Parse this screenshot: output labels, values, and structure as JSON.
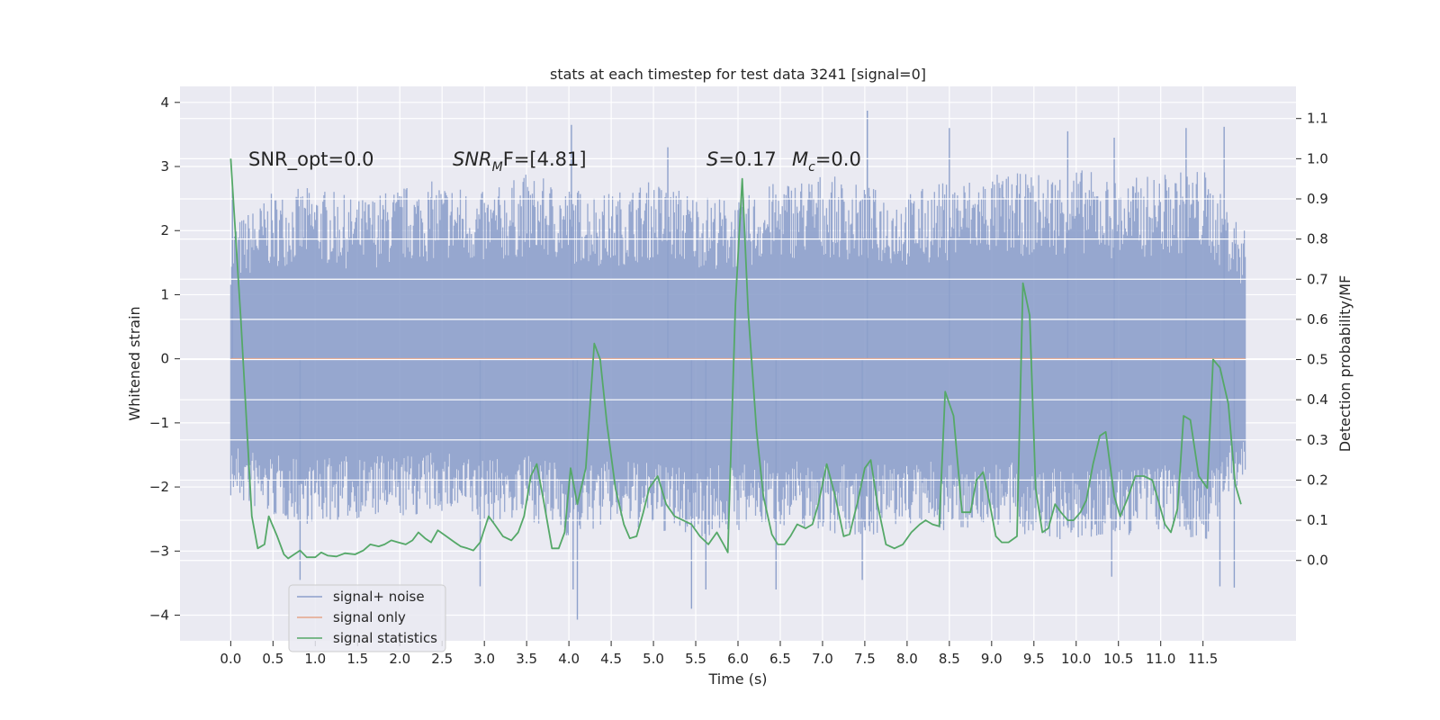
{
  "chart_data": {
    "type": "line",
    "title": "stats at each timestep for test data 3241 [signal=0]",
    "xlabel": "Time (s)",
    "ylabel": "Whitened strain",
    "ylabel_right": "Detection probability/MF",
    "xlim": [
      -0.6,
      12.6
    ],
    "ylim": [
      -4.4,
      4.25
    ],
    "ylim_right": [
      -0.2,
      1.18
    ],
    "x_ticks": [
      "0.0",
      "0.5",
      "1.0",
      "1.5",
      "2.0",
      "2.5",
      "3.0",
      "3.5",
      "4.0",
      "4.5",
      "5.0",
      "5.5",
      "6.0",
      "6.5",
      "7.0",
      "7.5",
      "8.0",
      "8.5",
      "9.0",
      "9.5",
      "10.0",
      "10.5",
      "11.0",
      "11.5"
    ],
    "y_ticks": [
      "−4",
      "−3",
      "−2",
      "−1",
      "0",
      "1",
      "2",
      "3",
      "4"
    ],
    "y_ticks_right": [
      "0.0",
      "0.1",
      "0.2",
      "0.3",
      "0.4",
      "0.5",
      "0.6",
      "0.7",
      "0.8",
      "0.9",
      "1.0",
      "1.1"
    ],
    "grid": true,
    "legend_placement": "lower-left",
    "annotations": {
      "snr_opt": "SNR_opt=0.0",
      "snr_mf_main": "SNR",
      "snr_mf_sub": "M",
      "snr_mf_rest": "F=[4.81]",
      "s_italic": "S",
      "s_value": "=0.17",
      "mc_main": "M",
      "mc_sub": "c",
      "mc_value": "=0.0"
    },
    "series": [
      {
        "name": "signal+ noise",
        "color": "#8da0cb",
        "axis": "left",
        "x_range": [
          0.0,
          12.0
        ],
        "band_envelope": {
          "x": [
            0.0,
            0.5,
            1.0,
            1.5,
            2.0,
            2.5,
            3.0,
            3.5,
            4.0,
            4.5,
            5.0,
            5.5,
            6.0,
            6.5,
            7.0,
            7.5,
            8.0,
            8.5,
            9.0,
            9.5,
            10.0,
            10.5,
            11.0,
            11.5,
            12.0
          ],
          "upper": [
            2.1,
            2.6,
            2.7,
            2.5,
            2.7,
            2.8,
            2.6,
            2.9,
            2.7,
            2.6,
            2.8,
            2.6,
            2.5,
            2.8,
            2.9,
            2.7,
            2.6,
            2.8,
            2.9,
            2.9,
            3.0,
            2.8,
            2.9,
            3.0,
            2.0
          ],
          "lower": [
            -2.2,
            -2.5,
            -2.6,
            -2.5,
            -2.5,
            -2.4,
            -2.6,
            -2.5,
            -2.8,
            -2.6,
            -2.7,
            -2.8,
            -2.7,
            -2.6,
            -2.7,
            -2.8,
            -2.6,
            -2.7,
            -2.6,
            -2.8,
            -2.9,
            -2.8,
            -2.7,
            -2.9,
            -1.9
          ]
        },
        "spikes": [
          {
            "x": 0.02,
            "y": 2.7
          },
          {
            "x": 4.03,
            "y": 3.65
          },
          {
            "x": 5.17,
            "y": 3.3
          },
          {
            "x": 7.53,
            "y": 3.87
          },
          {
            "x": 8.5,
            "y": 3.6
          },
          {
            "x": 9.9,
            "y": 3.55
          },
          {
            "x": 10.45,
            "y": 3.45
          },
          {
            "x": 11.3,
            "y": 3.6
          },
          {
            "x": 11.75,
            "y": 3.62
          },
          {
            "x": 0.82,
            "y": -3.45
          },
          {
            "x": 2.95,
            "y": -3.55
          },
          {
            "x": 4.05,
            "y": -3.6
          },
          {
            "x": 4.1,
            "y": -4.07
          },
          {
            "x": 5.45,
            "y": -3.9
          },
          {
            "x": 5.62,
            "y": -3.6
          },
          {
            "x": 6.45,
            "y": -3.6
          },
          {
            "x": 7.47,
            "y": -3.45
          },
          {
            "x": 10.42,
            "y": -3.4
          },
          {
            "x": 11.7,
            "y": -3.55
          },
          {
            "x": 11.87,
            "y": -3.57
          }
        ]
      },
      {
        "name": "signal only",
        "color": "#e5a58a",
        "axis": "left",
        "x": [
          0.0,
          12.0
        ],
        "y": [
          0.0,
          0.0
        ]
      },
      {
        "name": "signal statistics",
        "color": "#55a868",
        "axis": "right",
        "x": [
          0.0,
          0.12,
          0.25,
          0.32,
          0.4,
          0.45,
          0.55,
          0.63,
          0.68,
          0.75,
          0.82,
          0.9,
          1.0,
          1.07,
          1.15,
          1.25,
          1.35,
          1.47,
          1.57,
          1.65,
          1.75,
          1.82,
          1.9,
          1.98,
          2.07,
          2.15,
          2.22,
          2.3,
          2.37,
          2.45,
          2.55,
          2.65,
          2.72,
          2.8,
          2.87,
          2.95,
          3.05,
          3.12,
          3.22,
          3.32,
          3.4,
          3.47,
          3.55,
          3.62,
          3.7,
          3.8,
          3.88,
          3.95,
          4.02,
          4.1,
          4.2,
          4.3,
          4.37,
          4.45,
          4.55,
          4.65,
          4.72,
          4.8,
          4.88,
          4.95,
          5.05,
          5.15,
          5.25,
          5.35,
          5.45,
          5.55,
          5.65,
          5.75,
          5.83,
          5.88,
          5.97,
          6.05,
          6.12,
          6.22,
          6.3,
          6.4,
          6.47,
          6.55,
          6.62,
          6.7,
          6.8,
          6.88,
          6.95,
          7.05,
          7.15,
          7.25,
          7.32,
          7.42,
          7.5,
          7.57,
          7.65,
          7.75,
          7.85,
          7.95,
          8.05,
          8.15,
          8.22,
          8.3,
          8.38,
          8.45,
          8.55,
          8.65,
          8.75,
          8.82,
          8.9,
          8.97,
          9.05,
          9.12,
          9.2,
          9.3,
          9.37,
          9.45,
          9.52,
          9.6,
          9.67,
          9.75,
          9.82,
          9.9,
          9.97,
          10.05,
          10.12,
          10.2,
          10.28,
          10.35,
          10.45,
          10.52,
          10.6,
          10.7,
          10.8,
          10.9,
          10.97,
          11.05,
          11.12,
          11.2,
          11.27,
          11.35,
          11.45,
          11.55,
          11.62,
          11.7,
          11.8,
          11.88,
          11.95
        ],
        "y": [
          1.0,
          0.6,
          0.11,
          0.03,
          0.04,
          0.11,
          0.06,
          0.015,
          0.005,
          0.015,
          0.025,
          0.008,
          0.008,
          0.02,
          0.012,
          0.01,
          0.018,
          0.015,
          0.025,
          0.04,
          0.035,
          0.04,
          0.05,
          0.045,
          0.04,
          0.05,
          0.07,
          0.055,
          0.045,
          0.075,
          0.06,
          0.045,
          0.035,
          0.03,
          0.025,
          0.045,
          0.11,
          0.09,
          0.06,
          0.05,
          0.07,
          0.11,
          0.21,
          0.24,
          0.15,
          0.03,
          0.03,
          0.07,
          0.23,
          0.14,
          0.23,
          0.54,
          0.5,
          0.34,
          0.18,
          0.09,
          0.055,
          0.06,
          0.12,
          0.18,
          0.21,
          0.14,
          0.11,
          0.1,
          0.09,
          0.06,
          0.04,
          0.07,
          0.04,
          0.02,
          0.64,
          0.95,
          0.62,
          0.32,
          0.16,
          0.065,
          0.04,
          0.04,
          0.06,
          0.09,
          0.08,
          0.09,
          0.14,
          0.24,
          0.16,
          0.06,
          0.065,
          0.15,
          0.23,
          0.25,
          0.14,
          0.04,
          0.03,
          0.04,
          0.07,
          0.09,
          0.1,
          0.09,
          0.085,
          0.42,
          0.36,
          0.12,
          0.12,
          0.2,
          0.22,
          0.15,
          0.06,
          0.045,
          0.045,
          0.06,
          0.69,
          0.61,
          0.18,
          0.07,
          0.08,
          0.14,
          0.12,
          0.1,
          0.1,
          0.12,
          0.15,
          0.24,
          0.31,
          0.32,
          0.16,
          0.11,
          0.15,
          0.21,
          0.21,
          0.2,
          0.15,
          0.09,
          0.07,
          0.13,
          0.36,
          0.35,
          0.21,
          0.18,
          0.5,
          0.48,
          0.39,
          0.19,
          0.14
        ]
      }
    ]
  }
}
